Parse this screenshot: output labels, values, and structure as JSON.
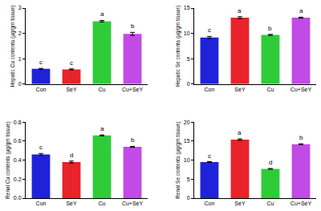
{
  "chart_data": [
    {
      "type": "bar",
      "y_label": "Hepatic Cu contents (µg/gm tissue)",
      "categories": [
        "Con",
        "SeY",
        "Cu",
        "Cu+SeY"
      ],
      "values": [
        0.6,
        0.58,
        2.48,
        1.98
      ],
      "errors": [
        0.02,
        0.02,
        0.03,
        0.06
      ],
      "annotations": [
        "c",
        "c",
        "a",
        "b"
      ],
      "colors": [
        "#1f22d8",
        "#e8232a",
        "#2fcc3a",
        "#c24ae6"
      ],
      "ylim": [
        0,
        3
      ],
      "yticks": [
        0,
        1,
        2,
        3
      ],
      "grid": false
    },
    {
      "type": "bar",
      "y_label": "Hepatic Se contents (µg/gm tissue)",
      "categories": [
        "Con",
        "SeY",
        "Cu",
        "Cu+SeY"
      ],
      "values": [
        9.2,
        13.1,
        9.7,
        13.1
      ],
      "errors": [
        0.2,
        0.2,
        0.1,
        0.1
      ],
      "annotations": [
        "c",
        "a",
        "b",
        "a"
      ],
      "colors": [
        "#1f22d8",
        "#e8232a",
        "#2fcc3a",
        "#c24ae6"
      ],
      "ylim": [
        0,
        15
      ],
      "yticks": [
        0,
        5,
        10,
        15
      ],
      "grid": false
    },
    {
      "type": "bar",
      "y_label": "Renal Cu contents (µg/gm tissue)",
      "categories": [
        "Con",
        "SeY",
        "Cu",
        "Cu+SeY"
      ],
      "values": [
        0.46,
        0.38,
        0.66,
        0.54
      ],
      "errors": [
        0.01,
        0.01,
        0.005,
        0.005
      ],
      "annotations": [
        "c",
        "d",
        "a",
        "b"
      ],
      "colors": [
        "#1f22d8",
        "#e8232a",
        "#2fcc3a",
        "#c24ae6"
      ],
      "ylim": [
        0,
        0.8
      ],
      "yticks": [
        {
          "value": 0,
          "label": "0.0"
        },
        0.2,
        0.4,
        0.6,
        0.8
      ],
      "grid": false
    },
    {
      "type": "bar",
      "y_label": "Renal Se contents (µg/gm tissue)",
      "categories": [
        "Con",
        "SeY",
        "Cu",
        "Cu+SeY"
      ],
      "values": [
        9.5,
        15.4,
        7.7,
        14.2
      ],
      "errors": [
        0.1,
        0.2,
        0.1,
        0.1
      ],
      "annotations": [
        "c",
        "a",
        "d",
        "b"
      ],
      "colors": [
        "#1f22d8",
        "#e8232a",
        "#2fcc3a",
        "#c24ae6"
      ],
      "ylim": [
        0,
        20
      ],
      "yticks": [
        0,
        5,
        10,
        15,
        20
      ],
      "grid": false
    }
  ]
}
